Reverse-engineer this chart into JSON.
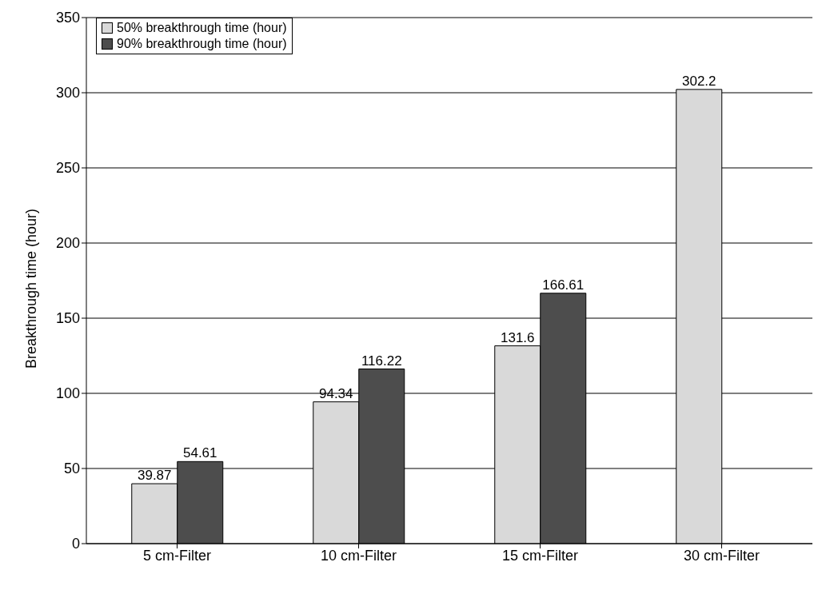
{
  "chart_data": {
    "type": "bar",
    "ylabel": "Breakthrough time (hour)",
    "categories": [
      "5 cm-Filter",
      "10 cm-Filter",
      "15 cm-Filter",
      "30 cm-Filter"
    ],
    "series": [
      {
        "name": "50% breakthrough time (hour)",
        "color": "#d9d9d9",
        "values": [
          39.87,
          94.34,
          131.6,
          302.2
        ]
      },
      {
        "name": "90% breakthrough time (hour)",
        "color": "#4d4d4d",
        "values": [
          54.61,
          116.22,
          166.61,
          null
        ]
      }
    ],
    "ylim": [
      0,
      350
    ],
    "yticks": [
      0,
      50,
      100,
      150,
      200,
      250,
      300,
      350
    ],
    "grid": "y",
    "legend": "top left",
    "data_labels": true
  }
}
